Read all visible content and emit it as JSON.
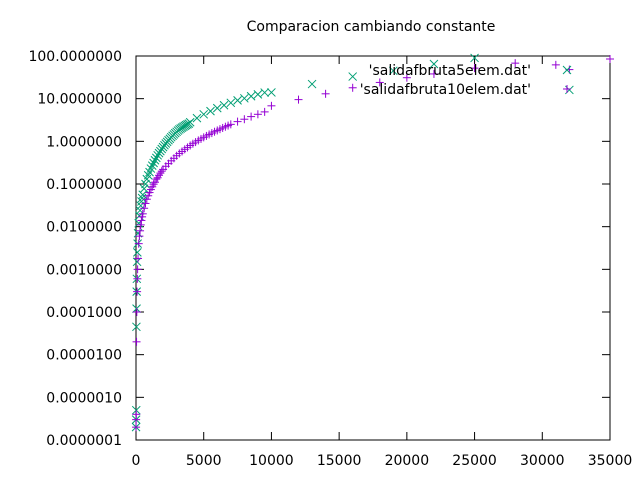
{
  "chart_data": {
    "type": "scatter",
    "title": "Comparacion cambiando constante",
    "xlabel": "",
    "ylabel": "",
    "xlim": [
      0,
      35000
    ],
    "ylim": [
      1e-07,
      100
    ],
    "yscale": "log",
    "x_ticks": [
      0,
      5000,
      10000,
      15000,
      20000,
      25000,
      30000,
      35000
    ],
    "x_tick_labels": [
      "0",
      "5000",
      "10000",
      "15000",
      "20000",
      "25000",
      "30000",
      "35000"
    ],
    "y_ticks": [
      1e-07,
      1e-06,
      1e-05,
      0.0001,
      0.001,
      0.01,
      0.1,
      1,
      10,
      100
    ],
    "y_tick_labels": [
      "0.0000001",
      "0.0000010",
      "0.0000100",
      "0.0001000",
      "0.0010000",
      "0.0100000",
      "0.1000000",
      "1.0000000",
      "10.0000000",
      "100.0000000"
    ],
    "grid": false,
    "legend_position": "top-right",
    "series": [
      {
        "name": "'salidafbruta5elem.dat'",
        "color": "#009e73",
        "marker": "x",
        "x": [
          5,
          10,
          20,
          30,
          40,
          50,
          60,
          80,
          100,
          120,
          150,
          200,
          250,
          300,
          350,
          400,
          450,
          500,
          600,
          700,
          800,
          900,
          1000,
          1100,
          1200,
          1300,
          1400,
          1500,
          1600,
          1700,
          1800,
          1900,
          2000,
          2100,
          2200,
          2300,
          2400,
          2500,
          2600,
          2700,
          2800,
          2900,
          3000,
          3100,
          3200,
          3300,
          3400,
          3500,
          3600,
          3700,
          3800,
          3900,
          4000,
          4500,
          5000,
          5500,
          6000,
          6500,
          7000,
          7500,
          8000,
          8500,
          9000,
          9500,
          10000,
          13000,
          16000,
          19000,
          22000,
          25000,
          32000
        ],
        "y": [
          2e-07,
          3e-07,
          5e-07,
          4.5e-05,
          0.00012,
          0.0003,
          0.0006,
          0.0015,
          0.0025,
          0.004,
          0.007,
          0.012,
          0.018,
          0.024,
          0.031,
          0.039,
          0.047,
          0.056,
          0.078,
          0.1,
          0.13,
          0.16,
          0.19,
          0.23,
          0.27,
          0.31,
          0.36,
          0.41,
          0.47,
          0.53,
          0.59,
          0.66,
          0.73,
          0.81,
          0.89,
          0.97,
          1.06,
          1.15,
          1.25,
          1.35,
          1.45,
          1.56,
          1.67,
          1.79,
          1.9,
          2.0,
          2.1,
          2.2,
          2.3,
          2.4,
          2.5,
          2.6,
          2.8,
          3.5,
          4.3,
          5.1,
          6.0,
          7.0,
          8.0,
          9.1,
          10.2,
          11.4,
          12.6,
          13.9,
          14.0,
          22.0,
          33.0,
          45.0,
          65.0,
          90.0,
          16.0
        ]
      },
      {
        "name": "'salidafbruta10elem.dat'",
        "color": "#9400d3",
        "marker": "+",
        "x": [
          5,
          10,
          20,
          40,
          60,
          80,
          100,
          120,
          150,
          200,
          250,
          300,
          350,
          400,
          450,
          500,
          600,
          700,
          800,
          900,
          1000,
          1100,
          1200,
          1300,
          1400,
          1500,
          1600,
          1700,
          1800,
          1900,
          2000,
          2200,
          2400,
          2600,
          2800,
          3000,
          3200,
          3400,
          3600,
          3800,
          4000,
          4200,
          4400,
          4600,
          4800,
          5000,
          5200,
          5400,
          5600,
          5800,
          6000,
          6200,
          6400,
          6600,
          6800,
          7000,
          7500,
          8000,
          8500,
          9000,
          9500,
          10000,
          12000,
          14000,
          16000,
          18000,
          20000,
          22000,
          25000,
          28000,
          31000,
          32000,
          35000
        ],
        "y": [
          2e-07,
          3e-07,
          4e-07,
          2e-05,
          0.0001,
          0.0003,
          0.0006,
          0.001,
          0.0018,
          0.004,
          0.006,
          0.008,
          0.011,
          0.014,
          0.017,
          0.02,
          0.027,
          0.035,
          0.044,
          0.053,
          0.063,
          0.074,
          0.086,
          0.099,
          0.11,
          0.13,
          0.14,
          0.16,
          0.18,
          0.2,
          0.22,
          0.26,
          0.3,
          0.35,
          0.4,
          0.46,
          0.52,
          0.58,
          0.65,
          0.72,
          0.8,
          0.88,
          0.96,
          1.05,
          1.14,
          1.24,
          1.34,
          1.45,
          1.56,
          1.68,
          1.8,
          1.93,
          2.06,
          2.2,
          2.34,
          2.5,
          2.9,
          3.3,
          3.8,
          4.3,
          4.9,
          6.8,
          9.5,
          13.0,
          18.0,
          24.0,
          31.0,
          38.0,
          52.0,
          68.0,
          62.0,
          48.0,
          85.0
        ]
      }
    ]
  }
}
